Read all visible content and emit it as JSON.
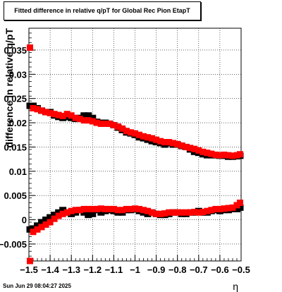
{
  "title": "Fitted difference in relative q/pT for Global Rec Pion EtapT",
  "footer_date": "Sun Jun 29 08:04:27 2025",
  "chart_data": {
    "type": "scatter",
    "title": "Fitted difference in relative q/pT for Global Rec Pion EtapT",
    "xlabel": "η",
    "ylabel": "difference in relative q/pT",
    "xlim": [
      -1.5,
      -0.5
    ],
    "ylim": [
      -0.0085,
      0.0395
    ],
    "grid": true,
    "x_ticks": [
      -1.5,
      -1.4,
      -1.3,
      -1.2,
      -1.1,
      -1.0,
      -0.9,
      -0.8,
      -0.7,
      -0.6,
      -0.5
    ],
    "x_tick_labels": [
      "−1.5",
      "−1.4",
      "−1.3",
      "−1.2",
      "−1.1",
      "−1",
      "−0.9",
      "−0.8",
      "−0.7",
      "−0.6",
      "−0.5"
    ],
    "y_ticks": [
      -0.005,
      0,
      0.005,
      0.01,
      0.015,
      0.02,
      0.025,
      0.03,
      0.035
    ],
    "y_tick_labels": [
      "−0.005",
      "0",
      "0.005",
      "0.01",
      "0.015",
      "0.02",
      "0.025",
      "0.03",
      "0.035"
    ],
    "x": [
      -1.495,
      -1.48,
      -1.46,
      -1.44,
      -1.42,
      -1.4,
      -1.38,
      -1.36,
      -1.34,
      -1.32,
      -1.3,
      -1.28,
      -1.26,
      -1.24,
      -1.22,
      -1.2,
      -1.18,
      -1.16,
      -1.14,
      -1.12,
      -1.1,
      -1.08,
      -1.06,
      -1.04,
      -1.02,
      -1.0,
      -0.98,
      -0.96,
      -0.94,
      -0.92,
      -0.9,
      -0.88,
      -0.86,
      -0.84,
      -0.82,
      -0.8,
      -0.78,
      -0.76,
      -0.74,
      -0.72,
      -0.7,
      -0.68,
      -0.66,
      -0.64,
      -0.62,
      -0.6,
      -0.58,
      -0.56,
      -0.54,
      -0.52,
      -0.505
    ],
    "series": [
      {
        "color": "#000000",
        "upper": [
          0.0235,
          0.0235,
          0.023,
          0.0225,
          0.0222,
          0.0222,
          0.0215,
          0.0212,
          0.021,
          0.0212,
          0.021,
          0.0208,
          0.021,
          0.0215,
          0.0215,
          0.021,
          0.0202,
          0.02,
          0.02,
          0.0198,
          0.0195,
          0.019,
          0.0185,
          0.018,
          0.0178,
          0.0175,
          0.017,
          0.0168,
          0.0165,
          0.0162,
          0.016,
          0.0158,
          0.0155,
          0.0158,
          0.0155,
          0.0155,
          0.0152,
          0.015,
          0.0145,
          0.014,
          0.0138,
          0.0135,
          0.0133,
          0.0133,
          0.0133,
          0.0132,
          0.0132,
          0.013,
          0.013,
          0.0131,
          0.0132
        ],
        "lower": [
          -0.002,
          -0.0018,
          -0.0012,
          -0.0005,
          0.0,
          0.0005,
          0.001,
          0.0015,
          0.002,
          0.0015,
          0.0012,
          0.0015,
          0.002,
          0.0015,
          0.001,
          0.0012,
          0.002,
          0.0015,
          0.0018,
          0.002,
          0.0018,
          0.0015,
          0.0015,
          0.002,
          0.002,
          0.0022,
          0.0018,
          0.0015,
          0.0012,
          0.0015,
          0.0012,
          0.001,
          0.001,
          0.0012,
          0.0015,
          0.0015,
          0.0012,
          0.0012,
          0.0015,
          0.0015,
          0.0018,
          0.0015,
          0.0015,
          0.0018,
          0.002,
          0.0018,
          0.002,
          0.002,
          0.0022,
          0.0022,
          0.0025
        ]
      },
      {
        "color": "#ff0000",
        "upper": [
          0.0355,
          0.023,
          0.0228,
          0.0225,
          0.0222,
          0.022,
          0.0218,
          0.0216,
          0.0214,
          0.0218,
          0.0215,
          0.021,
          0.0208,
          0.0205,
          0.0205,
          0.0203,
          0.02,
          0.0198,
          0.0198,
          0.0198,
          0.0195,
          0.0192,
          0.0188,
          0.0183,
          0.018,
          0.0178,
          0.0175,
          0.0172,
          0.017,
          0.0168,
          0.0165,
          0.0162,
          0.016,
          0.016,
          0.0158,
          0.0156,
          0.0153,
          0.015,
          0.0148,
          0.0146,
          0.0143,
          0.014,
          0.0138,
          0.0136,
          0.0134,
          0.0133,
          0.0134,
          0.0133,
          0.0132,
          0.0133,
          0.0135
        ],
        "lower": [
          -0.0085,
          -0.0025,
          -0.002,
          -0.0015,
          -0.001,
          -0.0005,
          0.0002,
          0.0008,
          0.0012,
          0.0015,
          0.0018,
          0.002,
          0.002,
          0.0022,
          0.0022,
          0.0022,
          0.0022,
          0.0023,
          0.0022,
          0.0022,
          0.0022,
          0.002,
          0.002,
          0.0022,
          0.0022,
          0.0023,
          0.0022,
          0.002,
          0.0018,
          0.0015,
          0.0012,
          0.0012,
          0.0013,
          0.0015,
          0.0015,
          0.0015,
          0.0015,
          0.0015,
          0.0015,
          0.0016,
          0.0015,
          0.0016,
          0.0018,
          0.002,
          0.0022,
          0.0022,
          0.0023,
          0.0024,
          0.0025,
          0.003,
          0.0035
        ]
      }
    ]
  }
}
